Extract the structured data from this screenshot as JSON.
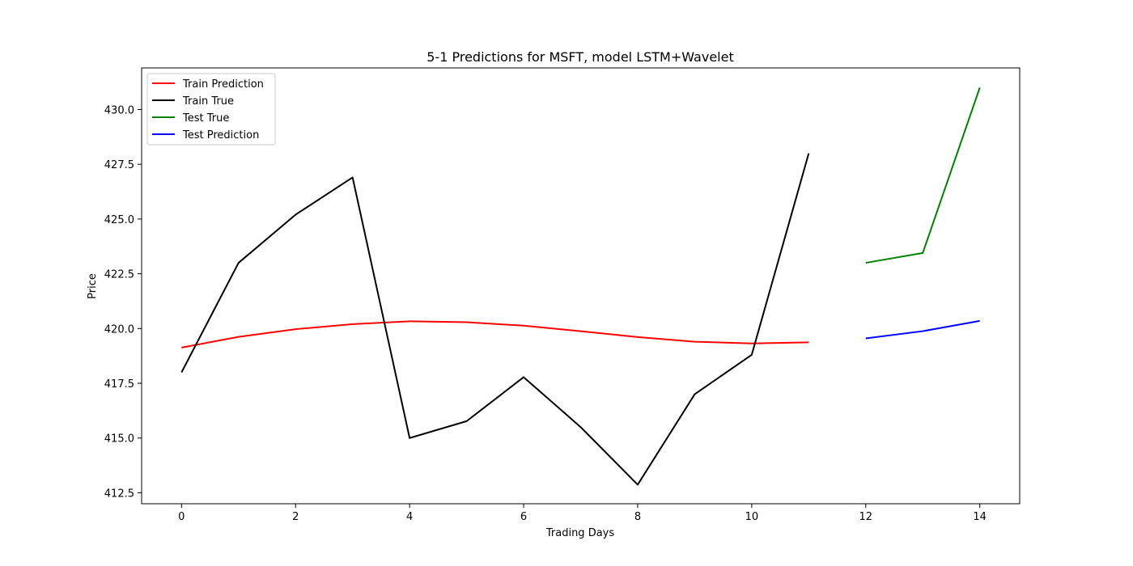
{
  "chart_data": {
    "type": "line",
    "title": "5-1 Predictions for MSFT, model LSTM+Wavelet",
    "xlabel": "Trading Days",
    "ylabel": "Price",
    "xlim": [
      -0.7,
      14.7
    ],
    "ylim": [
      412.0,
      431.9
    ],
    "xticks": [
      0,
      2,
      4,
      6,
      8,
      10,
      12,
      14
    ],
    "yticks": [
      412.5,
      415.0,
      417.5,
      420.0,
      422.5,
      425.0,
      427.5,
      430.0
    ],
    "xtick_labels": [
      "0",
      "2",
      "4",
      "6",
      "8",
      "10",
      "12",
      "14"
    ],
    "ytick_labels": [
      "412.5",
      "415.0",
      "417.5",
      "420.0",
      "422.5",
      "425.0",
      "427.5",
      "430.0"
    ],
    "grid": false,
    "legend_position": "top-left",
    "series": [
      {
        "name": "Train Prediction",
        "color": "#ff0000",
        "x": [
          0,
          1,
          2,
          3,
          4,
          5,
          6,
          7,
          8,
          9,
          10,
          11
        ],
        "values": [
          419.13,
          419.62,
          419.97,
          420.2,
          420.33,
          420.29,
          420.13,
          419.88,
          419.61,
          419.4,
          419.32,
          419.37
        ]
      },
      {
        "name": "Train True",
        "color": "#000000",
        "x": [
          0,
          1,
          2,
          3,
          4,
          5,
          6,
          7,
          8,
          9,
          10,
          11
        ],
        "values": [
          418.0,
          423.0,
          425.2,
          426.9,
          415.0,
          415.77,
          417.78,
          415.5,
          412.87,
          417.0,
          418.8,
          428.0
        ]
      },
      {
        "name": "Test True",
        "color": "#008000",
        "x": [
          12,
          13,
          14
        ],
        "values": [
          423.0,
          423.45,
          431.0
        ]
      },
      {
        "name": "Test Prediction",
        "color": "#0000ff",
        "x": [
          12,
          13,
          14
        ],
        "values": [
          419.55,
          419.88,
          420.35
        ]
      }
    ]
  }
}
